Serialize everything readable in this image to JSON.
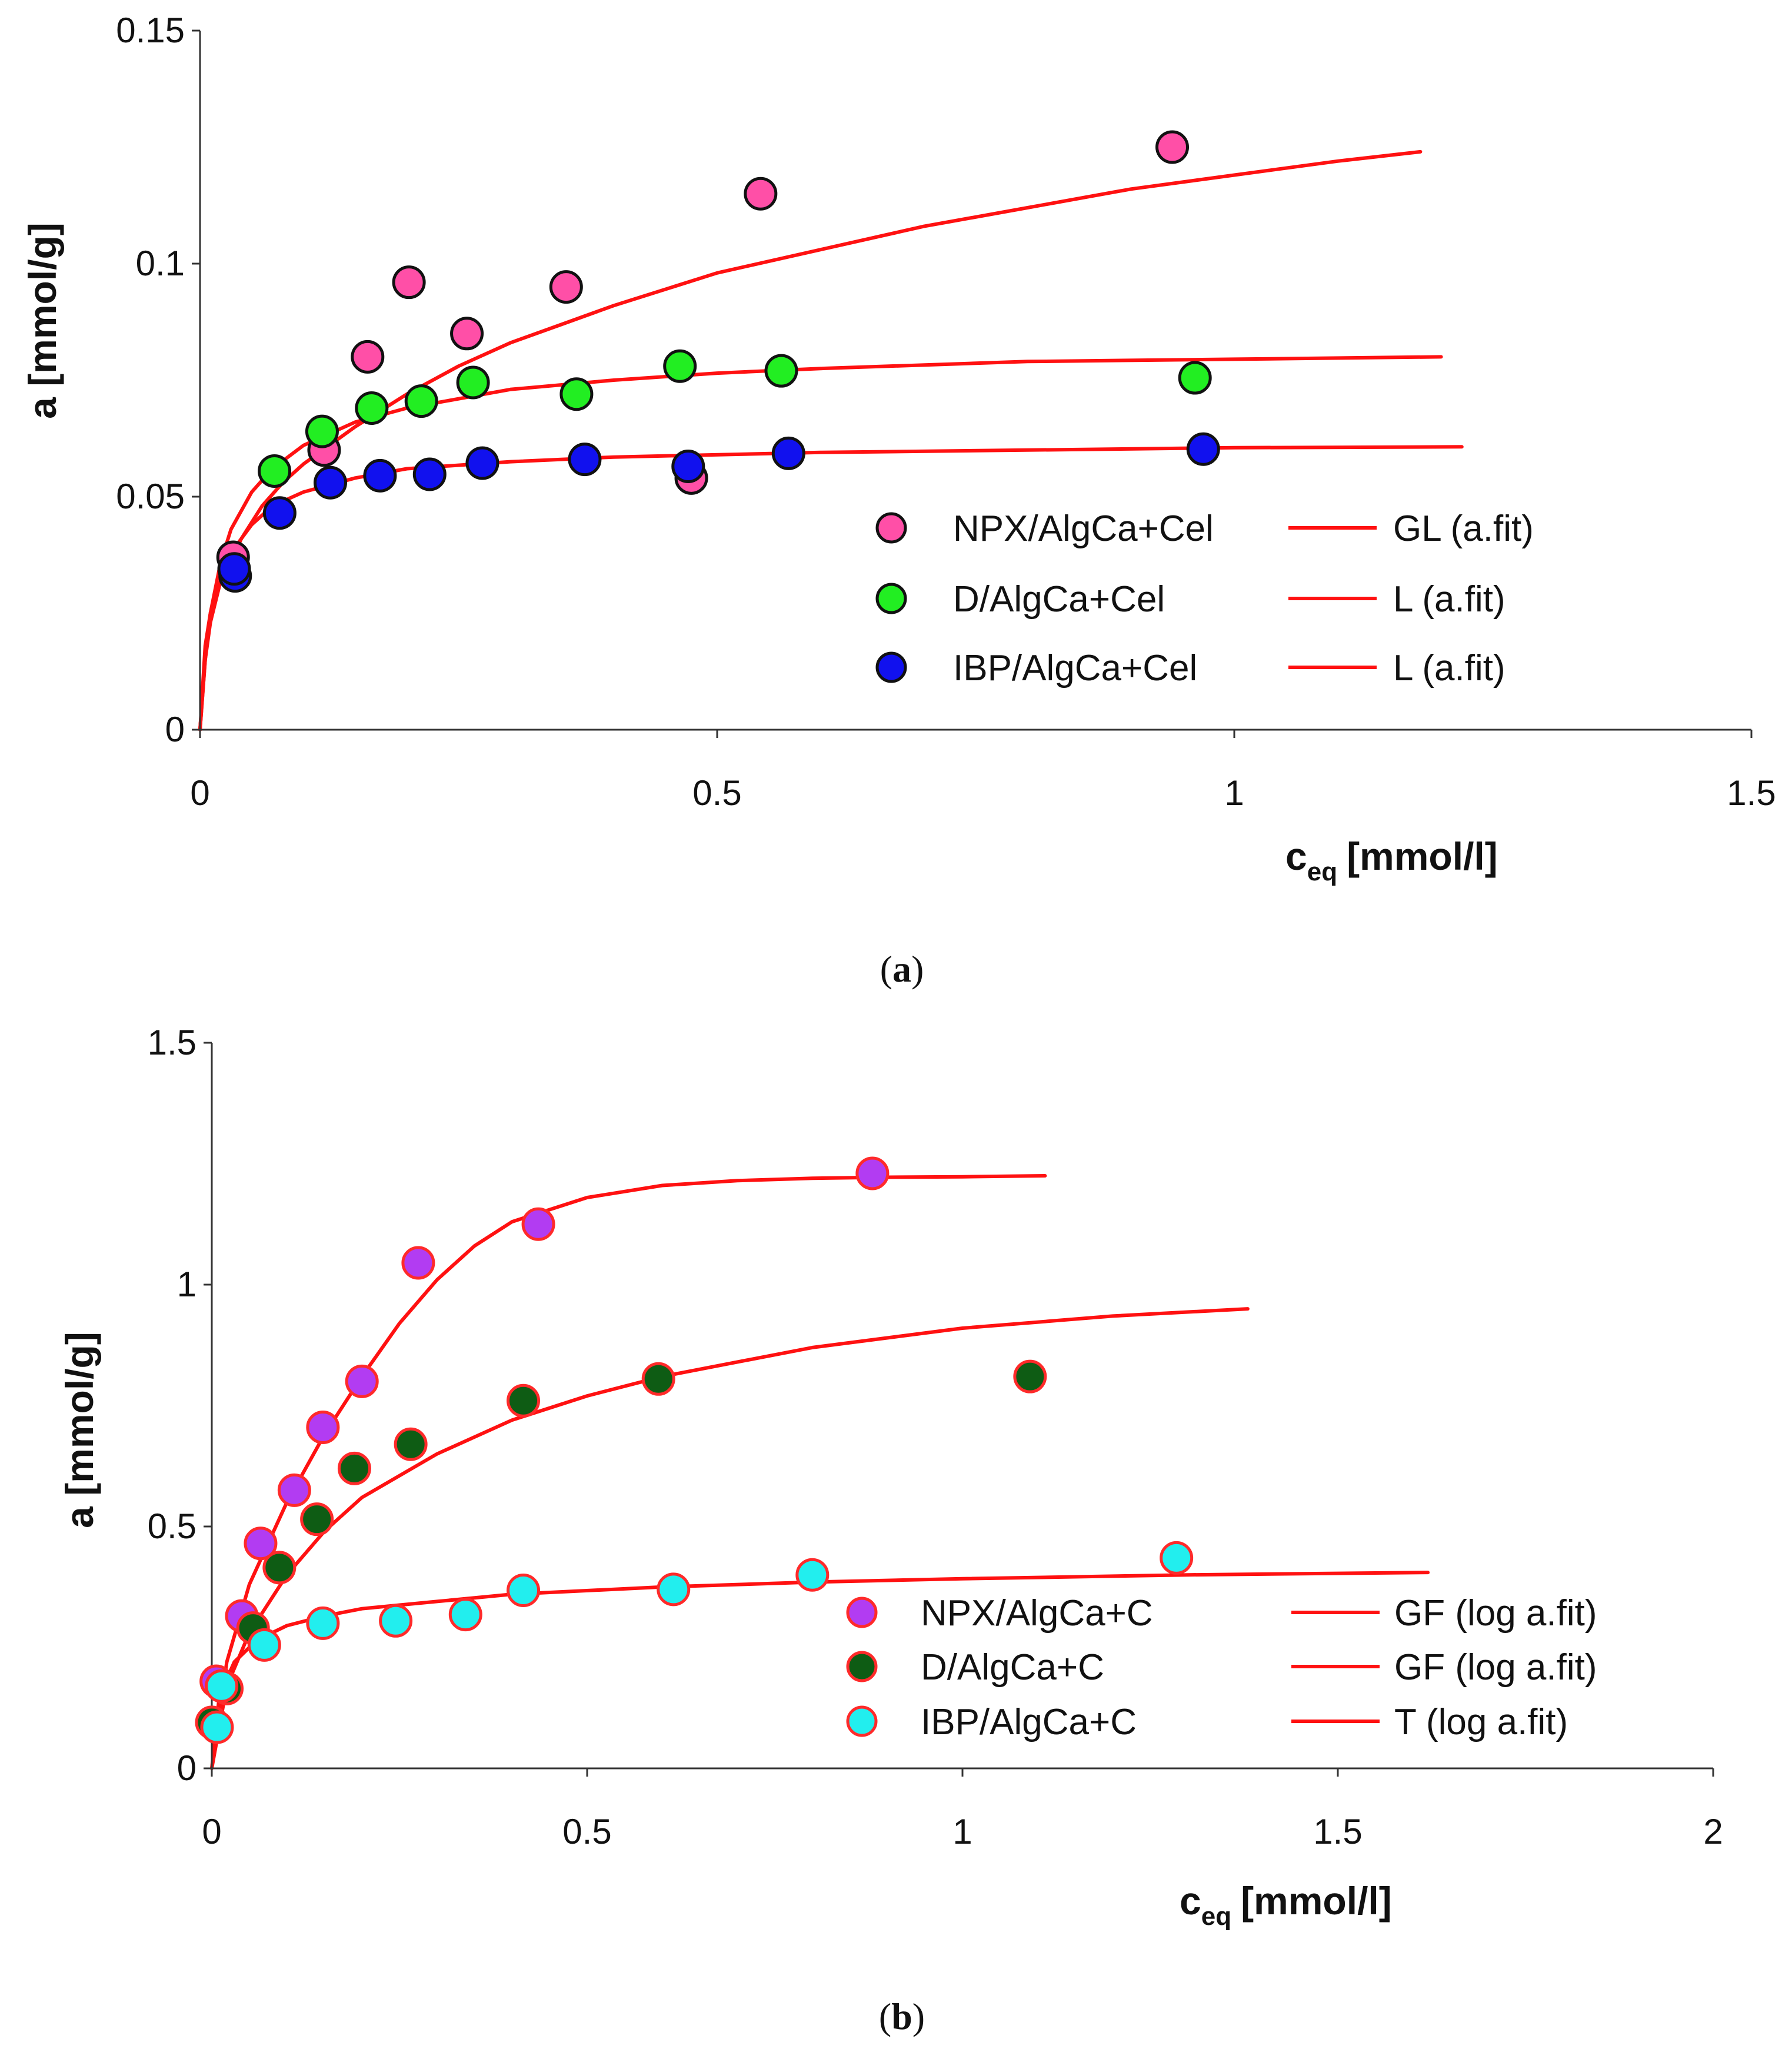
{
  "chart_data": [
    {
      "type": "scatter",
      "caption_letter": "a",
      "xlabel_main": "c",
      "xlabel_sub": "eq",
      "xlabel_unit": "[mmol/l]",
      "ylabel": "a [mmol/g]",
      "xlim": [
        0,
        1.5
      ],
      "ylim": [
        0,
        0.15
      ],
      "xticks": [
        "0",
        "0.5",
        "1",
        "1.5"
      ],
      "xtick_values": [
        0,
        0.5,
        1,
        1.5
      ],
      "yticks": [
        "0",
        "0.05",
        "0.1",
        "0.15"
      ],
      "ytick_values": [
        0,
        0.05,
        0.1,
        0.15
      ],
      "series": [
        {
          "name": "NPX/AlgCa+Cel",
          "marker_color": "#ff4fa7",
          "points": [
            [
              0.032,
              0.037
            ],
            [
              0.12,
              0.06
            ],
            [
              0.162,
              0.08
            ],
            [
              0.202,
              0.096
            ],
            [
              0.258,
              0.085
            ],
            [
              0.354,
              0.095
            ],
            [
              0.475,
              0.054
            ],
            [
              0.542,
              0.115
            ],
            [
              0.94,
              0.125
            ]
          ]
        },
        {
          "name": "D/AlgCa+Cel",
          "marker_color": "#22ee22",
          "points": [
            [
              0.072,
              0.0555
            ],
            [
              0.118,
              0.064
            ],
            [
              0.166,
              0.069
            ],
            [
              0.214,
              0.0705
            ],
            [
              0.264,
              0.0745
            ],
            [
              0.364,
              0.072
            ],
            [
              0.464,
              0.078
            ],
            [
              0.562,
              0.077
            ],
            [
              0.962,
              0.0755
            ]
          ]
        },
        {
          "name": "IBP/AlgCa+Cel",
          "marker_color": "#1111ee",
          "points": [
            [
              0.034,
              0.033
            ],
            [
              0.033,
              0.0345
            ],
            [
              0.077,
              0.0465
            ],
            [
              0.126,
              0.053
            ],
            [
              0.174,
              0.0545
            ],
            [
              0.222,
              0.0548
            ],
            [
              0.273,
              0.0572
            ],
            [
              0.372,
              0.058
            ],
            [
              0.472,
              0.0565
            ],
            [
              0.569,
              0.0593
            ],
            [
              0.97,
              0.0602
            ]
          ]
        }
      ],
      "fits": [
        {
          "name": "GL (a.fit)",
          "color": "#ff1111",
          "points": [
            [
              0,
              0
            ],
            [
              0.005,
              0.018
            ],
            [
              0.01,
              0.025
            ],
            [
              0.02,
              0.032
            ],
            [
              0.04,
              0.041
            ],
            [
              0.06,
              0.048
            ],
            [
              0.08,
              0.053
            ],
            [
              0.1,
              0.057
            ],
            [
              0.15,
              0.065
            ],
            [
              0.2,
              0.072
            ],
            [
              0.25,
              0.078
            ],
            [
              0.3,
              0.083
            ],
            [
              0.35,
              0.087
            ],
            [
              0.4,
              0.091
            ],
            [
              0.5,
              0.098
            ],
            [
              0.6,
              0.103
            ],
            [
              0.7,
              0.108
            ],
            [
              0.8,
              0.112
            ],
            [
              0.9,
              0.116
            ],
            [
              1.0,
              0.119
            ],
            [
              1.1,
              0.122
            ],
            [
              1.18,
              0.124
            ]
          ]
        },
        {
          "name": "L (a.fit)",
          "color": "#ff1111",
          "points": [
            [
              0,
              0
            ],
            [
              0.005,
              0.015
            ],
            [
              0.01,
              0.025
            ],
            [
              0.02,
              0.036
            ],
            [
              0.03,
              0.043
            ],
            [
              0.05,
              0.051
            ],
            [
              0.07,
              0.056
            ],
            [
              0.1,
              0.061
            ],
            [
              0.15,
              0.066
            ],
            [
              0.2,
              0.069
            ],
            [
              0.3,
              0.073
            ],
            [
              0.4,
              0.075
            ],
            [
              0.5,
              0.0765
            ],
            [
              0.6,
              0.0775
            ],
            [
              0.8,
              0.079
            ],
            [
              1.0,
              0.0795
            ],
            [
              1.2,
              0.08
            ]
          ]
        },
        {
          "name": "L (a.fit)",
          "color": "#ff1111",
          "points": [
            [
              0,
              0
            ],
            [
              0.005,
              0.015
            ],
            [
              0.01,
              0.023
            ],
            [
              0.02,
              0.032
            ],
            [
              0.03,
              0.038
            ],
            [
              0.05,
              0.044
            ],
            [
              0.07,
              0.048
            ],
            [
              0.1,
              0.051
            ],
            [
              0.15,
              0.054
            ],
            [
              0.2,
              0.056
            ],
            [
              0.3,
              0.0575
            ],
            [
              0.4,
              0.0585
            ],
            [
              0.6,
              0.0595
            ],
            [
              0.8,
              0.06
            ],
            [
              1.0,
              0.0605
            ],
            [
              1.22,
              0.0607
            ]
          ]
        }
      ]
    },
    {
      "type": "scatter",
      "caption_letter": "b",
      "xlabel_main": "c",
      "xlabel_sub": "eq",
      "xlabel_unit": "[mmol/l]",
      "ylabel": "a [mmol/g]",
      "xlim": [
        0,
        2
      ],
      "ylim": [
        0,
        1.5
      ],
      "xticks": [
        "0",
        "0.5",
        "1",
        "1.5",
        "2"
      ],
      "xtick_values": [
        0,
        0.5,
        1,
        1.5,
        2
      ],
      "yticks": [
        "0",
        "0.5",
        "1",
        "1.5"
      ],
      "ytick_values": [
        0,
        0.5,
        1,
        1.5
      ],
      "series": [
        {
          "name": "NPX/AlgCa+C",
          "marker_color": "#b23cf2",
          "points": [
            [
              0.006,
              0.18
            ],
            [
              0.04,
              0.315
            ],
            [
              0.065,
              0.465
            ],
            [
              0.11,
              0.575
            ],
            [
              0.148,
              0.705
            ],
            [
              0.2,
              0.8
            ],
            [
              0.275,
              1.045
            ],
            [
              0.435,
              1.125
            ],
            [
              0.88,
              1.23
            ]
          ]
        },
        {
          "name": "D/AlgCa+C",
          "marker_color": "#0e5c14",
          "points": [
            [
              0,
              0.095
            ],
            [
              0.02,
              0.165
            ],
            [
              0.055,
              0.29
            ],
            [
              0.09,
              0.415
            ],
            [
              0.14,
              0.515
            ],
            [
              0.19,
              0.62
            ],
            [
              0.265,
              0.67
            ],
            [
              0.415,
              0.76
            ],
            [
              0.595,
              0.805
            ],
            [
              1.09,
              0.81
            ]
          ]
        },
        {
          "name": "IBP/AlgCa+C",
          "marker_color": "#22eeee",
          "points": [
            [
              0.007,
              0.085
            ],
            [
              0.013,
              0.17
            ],
            [
              0.07,
              0.255
            ],
            [
              0.148,
              0.3
            ],
            [
              0.245,
              0.305
            ],
            [
              0.338,
              0.318
            ],
            [
              0.415,
              0.368
            ],
            [
              0.615,
              0.37
            ],
            [
              0.8,
              0.4
            ],
            [
              1.285,
              0.435
            ]
          ]
        }
      ],
      "fits": [
        {
          "name": "GF (log a.fit)",
          "color": "#ff1111",
          "points": [
            [
              0,
              0
            ],
            [
              0.02,
              0.22
            ],
            [
              0.05,
              0.38
            ],
            [
              0.1,
              0.55
            ],
            [
              0.15,
              0.69
            ],
            [
              0.2,
              0.81
            ],
            [
              0.25,
              0.92
            ],
            [
              0.3,
              1.01
            ],
            [
              0.35,
              1.08
            ],
            [
              0.4,
              1.13
            ],
            [
              0.5,
              1.18
            ],
            [
              0.6,
              1.205
            ],
            [
              0.7,
              1.215
            ],
            [
              0.8,
              1.22
            ],
            [
              0.9,
              1.222
            ],
            [
              1.0,
              1.223
            ],
            [
              1.11,
              1.225
            ]
          ]
        },
        {
          "name": "GF (log a.fit)",
          "color": "#ff1111",
          "points": [
            [
              0,
              0
            ],
            [
              0.02,
              0.17
            ],
            [
              0.05,
              0.28
            ],
            [
              0.1,
              0.4
            ],
            [
              0.15,
              0.49
            ],
            [
              0.2,
              0.56
            ],
            [
              0.3,
              0.65
            ],
            [
              0.4,
              0.72
            ],
            [
              0.5,
              0.77
            ],
            [
              0.6,
              0.81
            ],
            [
              0.8,
              0.87
            ],
            [
              1.0,
              0.91
            ],
            [
              1.2,
              0.935
            ],
            [
              1.38,
              0.95
            ]
          ]
        },
        {
          "name": "T (log a.fit)",
          "color": "#ff1111",
          "points": [
            [
              0,
              0
            ],
            [
              0.01,
              0.15
            ],
            [
              0.03,
              0.22
            ],
            [
              0.06,
              0.265
            ],
            [
              0.1,
              0.295
            ],
            [
              0.15,
              0.315
            ],
            [
              0.2,
              0.33
            ],
            [
              0.3,
              0.345
            ],
            [
              0.4,
              0.36
            ],
            [
              0.6,
              0.375
            ],
            [
              0.8,
              0.385
            ],
            [
              1.0,
              0.392
            ],
            [
              1.3,
              0.4
            ],
            [
              1.62,
              0.405
            ]
          ]
        }
      ]
    }
  ]
}
